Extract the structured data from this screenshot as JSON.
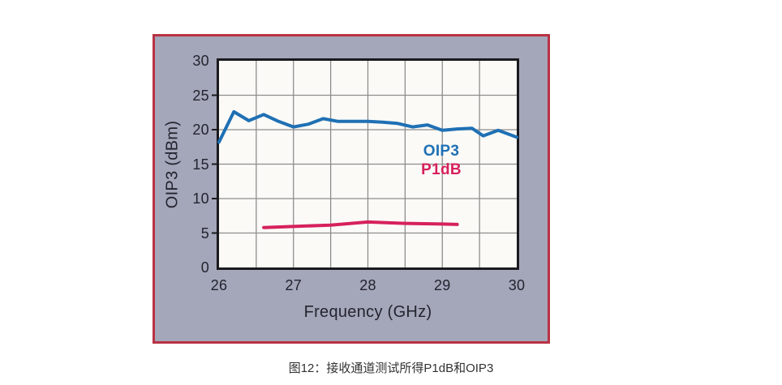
{
  "figure": {
    "caption": "图12：接收通道测试所得P1dB和OIP3"
  },
  "colors": {
    "panel_background": "#a4a6ba",
    "panel_border": "#b93243",
    "plot_background": "#fbfaf7",
    "gridline": "#8d8d8d",
    "axis_frame": "#1a1a1d",
    "tick_text": "#23242e",
    "oip3_line": "#1f70b4",
    "p1db_line": "#d6215c"
  },
  "chart_data": {
    "type": "line",
    "title": "",
    "xlabel": "Frequency (GHz)",
    "ylabel": "OIP3 (dBm)",
    "xlim": [
      26,
      30
    ],
    "ylim": [
      0,
      30
    ],
    "x_ticks": [
      26,
      27,
      28,
      29,
      30
    ],
    "y_ticks": [
      30,
      25,
      20,
      15,
      10,
      5,
      0
    ],
    "x_grid_step": 0.5,
    "y_grid_step": 5,
    "grid": true,
    "legend_position": "inside right-center",
    "series": [
      {
        "name": "OIP3",
        "color": "#1f70b4",
        "x": [
          26.0,
          26.2,
          26.4,
          26.6,
          26.8,
          27.0,
          27.2,
          27.4,
          27.6,
          27.8,
          28.0,
          28.2,
          28.4,
          28.6,
          28.8,
          29.0,
          29.2,
          29.4,
          29.55,
          29.75,
          30.0
        ],
        "y": [
          18.2,
          22.6,
          21.3,
          22.2,
          21.2,
          20.4,
          20.8,
          21.6,
          21.2,
          21.2,
          21.2,
          21.1,
          20.9,
          20.4,
          20.7,
          19.9,
          20.1,
          20.2,
          19.1,
          19.9,
          18.9
        ]
      },
      {
        "name": "P1dB",
        "color": "#d6215c",
        "x": [
          26.6,
          27.0,
          27.5,
          28.0,
          28.5,
          29.0,
          29.2
        ],
        "y": [
          5.8,
          5.95,
          6.15,
          6.6,
          6.4,
          6.3,
          6.25
        ]
      }
    ]
  }
}
